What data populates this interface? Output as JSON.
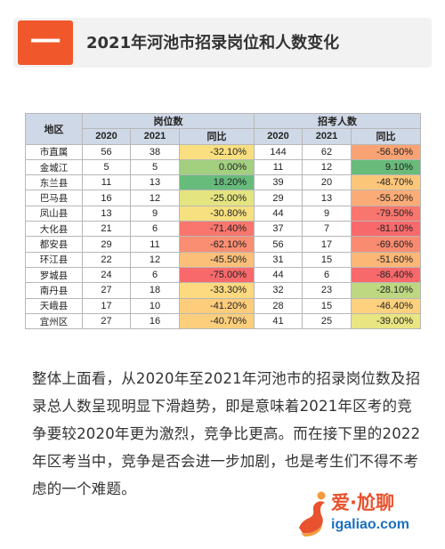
{
  "header": {
    "badge": "一",
    "title": "2021年河池市招录岗位和人数变化"
  },
  "table": {
    "group_headers": {
      "region": "地区",
      "positions": "岗位数",
      "applicants": "招考人数"
    },
    "sub_headers": [
      "2020",
      "2021",
      "同比",
      "2020",
      "2021",
      "同比"
    ],
    "rows": [
      {
        "region": "市直属",
        "p2020": "56",
        "p2021": "38",
        "p_yoy": "-32.10%",
        "p_color": "#f9df7f",
        "a2020": "144",
        "a2021": "62",
        "a_yoy": "-56.90%",
        "a_color": "#f9a374"
      },
      {
        "region": "金城江",
        "p2020": "5",
        "p2021": "5",
        "p_yoy": "0.00%",
        "p_color": "#a2d07f",
        "a2020": "11",
        "a2021": "12",
        "a_yoy": "9.10%",
        "a_color": "#68bb7a"
      },
      {
        "region": "东兰县",
        "p2020": "11",
        "p2021": "13",
        "p_yoy": "18.20%",
        "p_color": "#67bb7b",
        "a2020": "39",
        "a2021": "20",
        "a_yoy": "-48.70%",
        "a_color": "#fcc67a"
      },
      {
        "region": "巴马县",
        "p2020": "16",
        "p2021": "12",
        "p_yoy": "-25.00%",
        "p_color": "#e4e481",
        "a2020": "29",
        "a2021": "13",
        "a_yoy": "-55.20%",
        "a_color": "#fbac76"
      },
      {
        "region": "凤山县",
        "p2020": "13",
        "p2021": "9",
        "p_yoy": "-30.80%",
        "p_color": "#f6e080",
        "a2020": "44",
        "a2021": "9",
        "a_yoy": "-79.50%",
        "a_color": "#f8766d"
      },
      {
        "region": "大化县",
        "p2020": "21",
        "p2021": "6",
        "p_yoy": "-71.40%",
        "p_color": "#f8766d",
        "a2020": "37",
        "a2021": "7",
        "a_yoy": "-81.10%",
        "a_color": "#f8696b"
      },
      {
        "region": "都安县",
        "p2020": "29",
        "p2021": "11",
        "p_yoy": "-62.10%",
        "p_color": "#f98e72",
        "a2020": "56",
        "a2021": "17",
        "a_yoy": "-69.60%",
        "a_color": "#f98b71"
      },
      {
        "region": "环江县",
        "p2020": "22",
        "p2021": "12",
        "p_yoy": "-45.50%",
        "p_color": "#fbbf79",
        "a2020": "31",
        "a2021": "15",
        "a_yoy": "-51.60%",
        "a_color": "#fcb777"
      },
      {
        "region": "罗城县",
        "p2020": "24",
        "p2021": "6",
        "p_yoy": "-75.00%",
        "p_color": "#f8696b",
        "a2020": "44",
        "a2021": "6",
        "a_yoy": "-86.40%",
        "a_color": "#f8696b"
      },
      {
        "region": "南丹县",
        "p2020": "27",
        "p2021": "18",
        "p_yoy": "-33.30%",
        "p_color": "#fdd97f",
        "a2020": "32",
        "a2021": "23",
        "a_yoy": "-28.10%",
        "a_color": "#bdd881"
      },
      {
        "region": "天峨县",
        "p2020": "17",
        "p2021": "10",
        "p_yoy": "-41.20%",
        "p_color": "#fdcd7c",
        "a2020": "28",
        "a2021": "15",
        "a_yoy": "-46.40%",
        "a_color": "#fdd17d"
      },
      {
        "region": "宜州区",
        "p2020": "27",
        "p2021": "16",
        "p_yoy": "-40.70%",
        "p_color": "#fdcf7d",
        "a2020": "41",
        "a2021": "25",
        "a_yoy": "-39.00%",
        "a_color": "#e8e582"
      }
    ]
  },
  "paragraph": "整体上面看，从2020年至2021年河池市的招录岗位数及招录总人数呈现明显下滑趋势，即是意味着2021年区考的竞争要较2020年更为激烈，竞争比更高。而在接下里的2022年区考当中，竞争是否会进一步加剧，也是考生们不得不考虑的一个难题。",
  "logo": {
    "cn_text": "爱·尬聊",
    "url_text": "igaliao.com",
    "icon": "runner-logo-icon"
  }
}
